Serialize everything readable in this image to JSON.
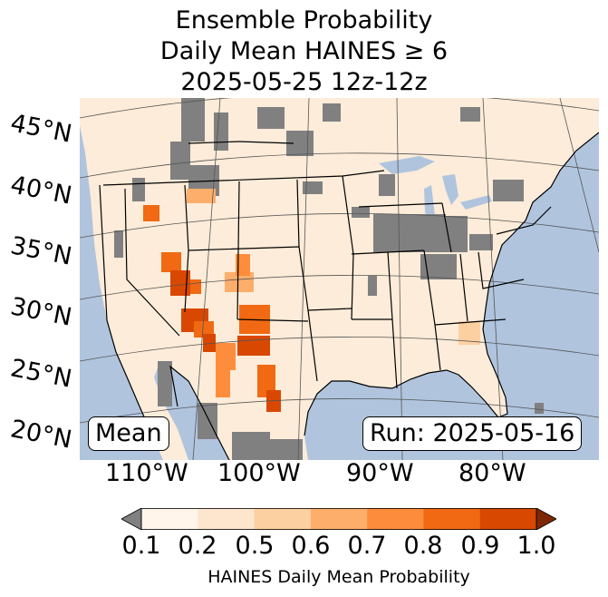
{
  "title": {
    "line1": "Ensemble Probability",
    "line2": "Daily Mean HAINES ≥ 6",
    "line3": "2025-05-25 12z-12z"
  },
  "map": {
    "ocean_color": "#b0c4de",
    "land_color": "#fdecd9",
    "no_data_color": "#808080",
    "latitude_labels": [
      "45°N",
      "40°N",
      "35°N",
      "30°N",
      "25°N",
      "20°N"
    ],
    "longitude_labels": [
      "110°W",
      "100°W",
      "90°W",
      "80°W"
    ],
    "stat_label": "Mean",
    "run_label": "Run: 2025-05-16"
  },
  "colorbar": {
    "label": "HAINES Daily Mean Probability",
    "ticks": [
      "0.1",
      "0.2",
      "0.5",
      "0.6",
      "0.7",
      "0.8",
      "0.9",
      "1.0"
    ],
    "under_color": "#808080",
    "over_color": "#7f2704",
    "colors": [
      "#fff5eb",
      "#fee6ce",
      "#fdd0a2",
      "#fdae6b",
      "#fd8d3c",
      "#f16913",
      "#d94801"
    ]
  }
}
